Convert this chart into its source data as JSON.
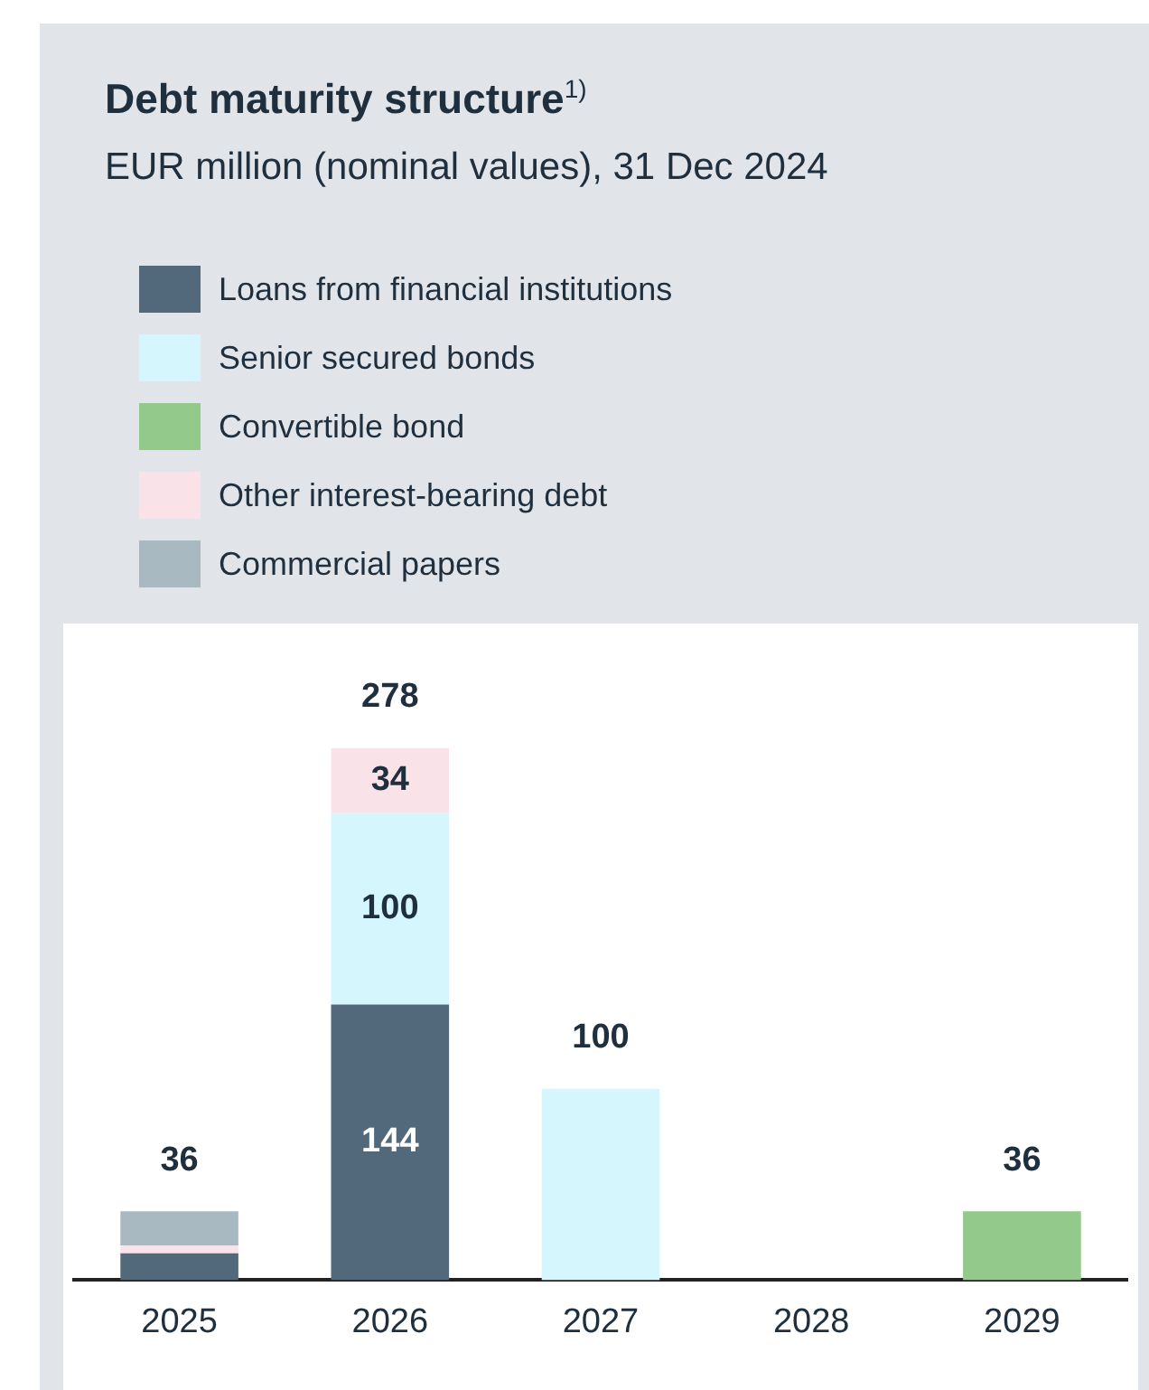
{
  "chart_data": {
    "type": "bar",
    "title": "Debt maturity structure$^{1)}$",
    "subtitle": "EUR million (nominal values), 31 Dec 2024",
    "categories": [
      "2025",
      "2026",
      "2027",
      "2028",
      "2029"
    ],
    "stacked": true,
    "legend": "top left",
    "grid": false,
    "tick_labels": "x",
    "series": [
      {
        "name": "Loans from financial institutions",
        "color": "#52697b",
        "values": [
          14,
          144,
          null,
          null,
          null
        ],
        "value_labels": [
          null,
          "144",
          null,
          null,
          null
        ]
      },
      {
        "name": "Senior secured bonds",
        "color": "#d4f6fc",
        "values": [
          null,
          100,
          100,
          null,
          null
        ],
        "value_labels": [
          null,
          "100",
          null,
          null,
          null
        ]
      },
      {
        "name": "Convertible bond",
        "color": "#93c98a",
        "values": [
          null,
          null,
          null,
          null,
          36
        ]
      },
      {
        "name": "Other interest-bearing debt",
        "color": "#f9e3e8",
        "values": [
          4,
          34,
          null,
          null,
          null
        ],
        "value_labels": [
          null,
          "34",
          null,
          null,
          null
        ]
      },
      {
        "name": "Commercial papers",
        "color": "#a9b9c1",
        "values": [
          18,
          null,
          null,
          null,
          null
        ]
      }
    ],
    "totals": [
      "36",
      "278",
      "100",
      null,
      "36"
    ]
  }
}
